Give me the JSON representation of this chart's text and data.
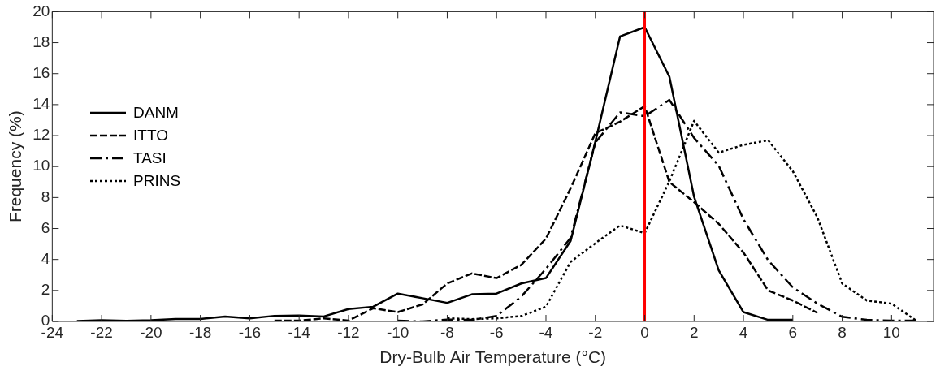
{
  "chart_data": {
    "type": "line",
    "xlabel": "Dry-Bulb Air Temperature (°C)",
    "ylabel": "Frequency (%)",
    "xlim": [
      -24,
      11.7
    ],
    "xticks": [
      -24,
      -22,
      -20,
      -18,
      -16,
      -14,
      -12,
      -10,
      -8,
      -6,
      -4,
      -2,
      0,
      2,
      4,
      6,
      8,
      10
    ],
    "ylim": [
      0,
      20
    ],
    "yticks": [
      0,
      2,
      4,
      6,
      8,
      10,
      12,
      14,
      16,
      18,
      20
    ],
    "grid": false,
    "legend": "left",
    "marker": "none",
    "ref_lines": [
      {
        "axis": "x",
        "value": 0,
        "color": "#ff0000",
        "line_style": "solid"
      }
    ],
    "series": [
      {
        "name": "DANM",
        "color": "#000000",
        "line_style": "solid",
        "x": [
          -23,
          -22,
          -21,
          -20,
          -19,
          -18,
          -17,
          -16,
          -15,
          -14,
          -13,
          -12,
          -11,
          -10,
          -9,
          -8,
          -7,
          -6,
          -5,
          -4,
          -3,
          -2,
          -1,
          0,
          1,
          2,
          3,
          4,
          5,
          6
        ],
        "values": [
          0.02,
          0.08,
          0.04,
          0.08,
          0.16,
          0.16,
          0.32,
          0.2,
          0.36,
          0.38,
          0.32,
          0.8,
          0.95,
          1.8,
          1.5,
          1.2,
          1.75,
          1.8,
          2.45,
          2.8,
          5.2,
          11.6,
          18.4,
          19,
          15.8,
          8.05,
          3.3,
          0.6,
          0.1,
          0.1
        ]
      },
      {
        "name": "ITTO",
        "color": "#000000",
        "line_style": "dashed",
        "x": [
          -15,
          -14,
          -13,
          -12,
          -11,
          -10,
          -9,
          -8,
          -7,
          -6,
          -5,
          -4,
          -3,
          -2,
          -1,
          0,
          1,
          2,
          3,
          4,
          5,
          6,
          7
        ],
        "values": [
          0.05,
          0.05,
          0.2,
          0.05,
          0.85,
          0.6,
          1.1,
          2.45,
          3.1,
          2.8,
          3.65,
          5.35,
          8.6,
          12.15,
          12.9,
          13.9,
          9,
          7.7,
          6.3,
          4.45,
          2,
          1.35,
          0.55
        ]
      },
      {
        "name": "TASI",
        "color": "#000000",
        "line_style": "dashdot",
        "x": [
          -10,
          -9,
          -8,
          -7,
          -6,
          -5,
          -4,
          -3,
          -2,
          -1,
          0,
          1,
          2,
          3,
          4,
          5,
          6,
          7,
          8,
          9,
          10,
          11
        ],
        "values": [
          0.05,
          0,
          0.12,
          0.1,
          0.35,
          1.6,
          3.4,
          5.4,
          11.55,
          13.5,
          13.25,
          14.3,
          11.85,
          10.05,
          6.6,
          3.95,
          2.2,
          1.15,
          0.3,
          0.1,
          0.05,
          0.05
        ]
      },
      {
        "name": "PRINS",
        "color": "#000000",
        "line_style": "dotted",
        "x": [
          -8,
          -7,
          -6,
          -5,
          -4,
          -3,
          -2,
          -1,
          0,
          1,
          2,
          3,
          4,
          5,
          6,
          7,
          8,
          9,
          10,
          11
        ],
        "values": [
          0.2,
          0.15,
          0.2,
          0.35,
          0.95,
          3.85,
          5.05,
          6.2,
          5.7,
          9.05,
          12.95,
          10.9,
          11.4,
          11.7,
          9.7,
          6.7,
          2.45,
          1.35,
          1.15,
          0.05
        ]
      }
    ]
  }
}
